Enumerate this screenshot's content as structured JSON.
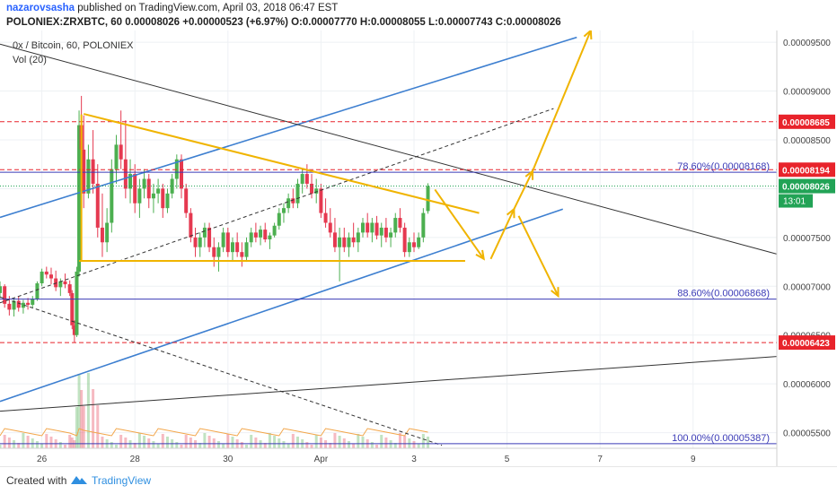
{
  "header": {
    "author": "nazarovsasha",
    "published": "published on TradingView.com, April 03, 2018 06:47 EST",
    "symbol_line": "POLONIEX:ZRXBTC, 60",
    "last": "0.00008026",
    "change": "+0.00000523 (+6.97%)",
    "open_label": "O:",
    "open": "0.00007770",
    "high_label": "H:",
    "high": "0.00008055",
    "low_label": "L:",
    "low": "0.00007743",
    "close_label": "C:",
    "close": "0.00008026"
  },
  "legend": {
    "title": "0x / Bitcoin, 60, POLONIEX",
    "volume": "Vol (20)"
  },
  "footer": {
    "created_with": "Created with",
    "brand": "TradingView"
  },
  "colors": {
    "up": "#4caf50",
    "down": "#e53950",
    "pattern": "#f0b400",
    "channel": "#3d7fd0",
    "trend": "#333333",
    "label_red": "#e8232b",
    "label_green": "#22a356",
    "fib": "#3a3ab6"
  },
  "chart_data": {
    "type": "candlestick",
    "y_axis": {
      "ylim": [
        5.34e-05,
        9.62e-05
      ],
      "ticks": [
        "0.00005500",
        "0.00006000",
        "0.00006500",
        "0.00007000",
        "0.00007500",
        "0.00008000",
        "0.00008500",
        "0.00009000",
        "0.00009500"
      ],
      "tick_values": [
        5.5e-05,
        6e-05,
        6.5e-05,
        7e-05,
        7.5e-05,
        8e-05,
        8.5e-05,
        9e-05,
        9.5e-05
      ]
    },
    "x_axis": {
      "ticks": [
        "26",
        "28",
        "30",
        "Apr",
        "3",
        "5",
        "7",
        "9"
      ],
      "tick_days": [
        26,
        28,
        30,
        32,
        34,
        36,
        38,
        40
      ],
      "xlim": [
        25.1,
        41.8
      ]
    },
    "price_labels": [
      {
        "text": "0.00008685",
        "value": 8.685e-05,
        "style": "red"
      },
      {
        "text": "0.00008194",
        "value": 8.194e-05,
        "style": "red"
      },
      {
        "text": "0.00008026",
        "value": 8.026e-05,
        "style": "green"
      },
      {
        "text": "0.00006423",
        "value": 6.423e-05,
        "style": "red"
      }
    ],
    "countdown": "13:01",
    "horizontal_lines": [
      {
        "value": 8.685e-05,
        "style": "red-dashed"
      },
      {
        "value": 8.194e-05,
        "style": "red-dashed"
      },
      {
        "value": 6.423e-05,
        "style": "red-dashed"
      },
      {
        "value": 8.026e-05,
        "style": "green-dotted"
      }
    ],
    "fib_levels": [
      {
        "label": "78.60%(0.00008168)",
        "value": 8.168e-05
      },
      {
        "label": "88.60%(0.00006868)",
        "value": 6.868e-05
      },
      {
        "label": "100.00%(0.00005387)",
        "value": 5.387e-05
      }
    ],
    "trendlines": [
      {
        "role": "channel-upper",
        "style": "blue",
        "p1": [
          25.1,
          7.705e-05
        ],
        "p2": [
          37.5,
          9.55e-05
        ]
      },
      {
        "role": "channel-lower",
        "style": "blue",
        "p1": [
          25.1,
          5.82e-05
        ],
        "p2": [
          37.2,
          7.79e-05
        ]
      },
      {
        "role": "descending",
        "style": "black",
        "p1": [
          25.1,
          9.48e-05
        ],
        "p2": [
          41.8,
          7.33e-05
        ]
      },
      {
        "role": "long-term",
        "style": "black",
        "p1": [
          25.1,
          5.72e-05
        ],
        "p2": [
          41.8,
          6.28e-05
        ]
      },
      {
        "role": "mid-channel",
        "style": "black-dashed",
        "p1": [
          25.1,
          6.83e-05
        ],
        "p2": [
          37.0,
          8.82e-05
        ]
      },
      {
        "role": "lower-dashed",
        "style": "black-dashed",
        "p1": [
          25.1,
          6.89e-05
        ],
        "p2": [
          34.6,
          5.37e-05
        ]
      }
    ],
    "pattern_lines": [
      {
        "role": "triangle-top",
        "p1": [
          26.9,
          8.765e-05
        ],
        "p2": [
          35.4,
          7.75e-05
        ]
      },
      {
        "role": "triangle-base",
        "p1": [
          26.8,
          7.26e-05
        ],
        "p2": [
          35.1,
          7.26e-05
        ]
      },
      {
        "role": "triangle-left",
        "p1": [
          26.85,
          8.76e-05
        ],
        "p2": [
          26.85,
          7.26e-05
        ]
      }
    ],
    "arrows": [
      {
        "p1": [
          34.45,
          7.99e-05
        ],
        "p2": [
          35.5,
          7.28e-05
        ]
      },
      {
        "p1": [
          35.65,
          7.28e-05
        ],
        "p2": [
          36.15,
          7.79e-05
        ]
      },
      {
        "p1": [
          36.15,
          7.79e-05
        ],
        "p2": [
          36.55,
          8.18e-05
        ]
      },
      {
        "p1": [
          36.55,
          8.18e-05
        ],
        "p2": [
          37.8,
          9.62e-05
        ]
      },
      {
        "p1": [
          36.25,
          7.72e-05
        ],
        "p2": [
          37.1,
          6.9e-05
        ]
      }
    ],
    "candles": [
      [
        25.1,
        6.93e-05,
        7.05e-05,
        6.88e-05,
        7e-05
      ],
      [
        25.2,
        7e-05,
        7.02e-05,
        6.78e-05,
        6.82e-05
      ],
      [
        25.3,
        6.82e-05,
        6.9e-05,
        6.7e-05,
        6.76e-05
      ],
      [
        25.4,
        6.76e-05,
        6.88e-05,
        6.69e-05,
        6.85e-05
      ],
      [
        25.5,
        6.85e-05,
        6.9e-05,
        6.74e-05,
        6.78e-05
      ],
      [
        25.6,
        6.78e-05,
        6.86e-05,
        6.72e-05,
        6.83e-05
      ],
      [
        25.7,
        6.83e-05,
        6.88e-05,
        6.76e-05,
        6.81e-05
      ],
      [
        25.8,
        6.81e-05,
        6.9e-05,
        6.78e-05,
        6.87e-05
      ],
      [
        25.9,
        6.87e-05,
        7.05e-05,
        6.85e-05,
        7.03e-05
      ],
      [
        26.0,
        7.03e-05,
        7.18e-05,
        7e-05,
        7.15e-05
      ],
      [
        26.1,
        7.15e-05,
        7.2e-05,
        7.08e-05,
        7.12e-05
      ],
      [
        26.2,
        7.12e-05,
        7.19e-05,
        7.02e-05,
        7.08e-05
      ],
      [
        26.3,
        7.08e-05,
        7.16e-05,
        6.95e-05,
        6.99e-05
      ],
      [
        26.4,
        6.99e-05,
        7.08e-05,
        6.9e-05,
        7.05e-05
      ],
      [
        26.5,
        7.05e-05,
        7.13e-05,
        6.98e-05,
        7.02e-05
      ],
      [
        26.6,
        7.02e-05,
        7.06e-05,
        6.9e-05,
        6.93e-05
      ],
      [
        26.65,
        6.93e-05,
        6.96e-05,
        6.56e-05,
        6.6e-05
      ],
      [
        26.7,
        6.6e-05,
        6.65e-05,
        6.42e-05,
        6.5e-05
      ],
      [
        26.75,
        6.5e-05,
        7.2e-05,
        6.48e-05,
        7.15e-05
      ],
      [
        26.8,
        7.15e-05,
        8.8e-05,
        7.1e-05,
        8.65e-05
      ],
      [
        26.85,
        8.65e-05,
        8.95e-05,
        8.2e-05,
        8.4e-05
      ],
      [
        26.9,
        8.4e-05,
        8.75e-05,
        7.8e-05,
        7.95e-05
      ],
      [
        27.0,
        7.95e-05,
        8.45e-05,
        7.9e-05,
        8.3e-05
      ],
      [
        27.1,
        8.3e-05,
        8.6e-05,
        7.95e-05,
        8.05e-05
      ],
      [
        27.2,
        8.05e-05,
        8.25e-05,
        7.5e-05,
        7.6e-05
      ],
      [
        27.3,
        7.6e-05,
        7.95e-05,
        7.3e-05,
        7.45e-05
      ],
      [
        27.4,
        7.45e-05,
        7.8e-05,
        7.35e-05,
        7.65e-05
      ],
      [
        27.5,
        7.65e-05,
        8.3e-05,
        7.55e-05,
        8.2e-05
      ],
      [
        27.6,
        8.2e-05,
        8.55e-05,
        8.05e-05,
        8.45e-05
      ],
      [
        27.7,
        8.45e-05,
        8.8e-05,
        8.2e-05,
        8.3e-05
      ],
      [
        27.8,
        8.3e-05,
        8.7e-05,
        7.9e-05,
        8e-05
      ],
      [
        27.9,
        8e-05,
        8.3e-05,
        7.85e-05,
        8.15e-05
      ],
      [
        28.0,
        8.15e-05,
        8.25e-05,
        7.75e-05,
        7.85e-05
      ],
      [
        28.1,
        7.85e-05,
        8.1e-05,
        7.7e-05,
        8e-05
      ],
      [
        28.2,
        8e-05,
        8.2e-05,
        7.9e-05,
        8.1e-05
      ],
      [
        28.3,
        8.1e-05,
        8.15e-05,
        7.8e-05,
        7.9e-05
      ],
      [
        28.4,
        7.9e-05,
        8.05e-05,
        7.75e-05,
        7.95e-05
      ],
      [
        28.5,
        7.95e-05,
        8.1e-05,
        7.85e-05,
        8e-05
      ],
      [
        28.6,
        8e-05,
        8.05e-05,
        7.7e-05,
        7.8e-05
      ],
      [
        28.7,
        7.8e-05,
        8e-05,
        7.75e-05,
        7.95e-05
      ],
      [
        28.8,
        7.95e-05,
        8.15e-05,
        7.9e-05,
        8.1e-05
      ],
      [
        28.9,
        8.1e-05,
        8.35e-05,
        8e-05,
        8.3e-05
      ],
      [
        29.0,
        8.3e-05,
        8.35e-05,
        7.9e-05,
        8e-05
      ],
      [
        29.1,
        8e-05,
        8.05e-05,
        7.7e-05,
        7.75e-05
      ],
      [
        29.2,
        7.75e-05,
        7.8e-05,
        7.45e-05,
        7.5e-05
      ],
      [
        29.3,
        7.5e-05,
        7.6e-05,
        7.3e-05,
        7.4e-05
      ],
      [
        29.4,
        7.4e-05,
        7.55e-05,
        7.3e-05,
        7.5e-05
      ],
      [
        29.5,
        7.5e-05,
        7.65e-05,
        7.4e-05,
        7.6e-05
      ],
      [
        29.6,
        7.6e-05,
        7.65e-05,
        7.35e-05,
        7.4e-05
      ],
      [
        29.7,
        7.4e-05,
        7.5e-05,
        7.2e-05,
        7.3e-05
      ],
      [
        29.8,
        7.3e-05,
        7.45e-05,
        7.15e-05,
        7.4e-05
      ],
      [
        29.9,
        7.4e-05,
        7.6e-05,
        7.35e-05,
        7.55e-05
      ],
      [
        30.0,
        7.55e-05,
        7.6e-05,
        7.3e-05,
        7.35e-05
      ],
      [
        30.1,
        7.35e-05,
        7.5e-05,
        7.25e-05,
        7.45e-05
      ],
      [
        30.2,
        7.45e-05,
        7.55e-05,
        7.3e-05,
        7.35e-05
      ],
      [
        30.3,
        7.35e-05,
        7.45e-05,
        7.2e-05,
        7.3e-05
      ],
      [
        30.4,
        7.3e-05,
        7.5e-05,
        7.25e-05,
        7.45e-05
      ],
      [
        30.5,
        7.45e-05,
        7.6e-05,
        7.4e-05,
        7.55e-05
      ],
      [
        30.6,
        7.55e-05,
        7.65e-05,
        7.45e-05,
        7.5e-05
      ],
      [
        30.7,
        7.5e-05,
        7.62e-05,
        7.42e-05,
        7.58e-05
      ],
      [
        30.8,
        7.58e-05,
        7.65e-05,
        7.45e-05,
        7.48e-05
      ],
      [
        30.9,
        7.48e-05,
        7.55e-05,
        7.38e-05,
        7.52e-05
      ],
      [
        31.0,
        7.52e-05,
        7.65e-05,
        7.5e-05,
        7.62e-05
      ],
      [
        31.1,
        7.62e-05,
        7.8e-05,
        7.58e-05,
        7.75e-05
      ],
      [
        31.2,
        7.75e-05,
        7.85e-05,
        7.65e-05,
        7.8e-05
      ],
      [
        31.3,
        7.8e-05,
        7.95e-05,
        7.75e-05,
        7.9e-05
      ],
      [
        31.4,
        7.9e-05,
        8e-05,
        7.8e-05,
        7.85e-05
      ],
      [
        31.5,
        7.85e-05,
        8.1e-05,
        7.8e-05,
        8.05e-05
      ],
      [
        31.6,
        8.05e-05,
        8.2e-05,
        7.95e-05,
        8.15e-05
      ],
      [
        31.7,
        8.15e-05,
        8.25e-05,
        8e-05,
        8.05e-05
      ],
      [
        31.8,
        8.05e-05,
        8.15e-05,
        7.9e-05,
        7.95e-05
      ],
      [
        31.9,
        7.95e-05,
        8.1e-05,
        7.85e-05,
        8e-05
      ],
      [
        32.0,
        8e-05,
        8.05e-05,
        7.7e-05,
        7.75e-05
      ],
      [
        32.1,
        7.75e-05,
        7.9e-05,
        7.6e-05,
        7.65e-05
      ],
      [
        32.2,
        7.65e-05,
        7.8e-05,
        7.5e-05,
        7.55e-05
      ],
      [
        32.3,
        7.55e-05,
        7.7e-05,
        7.35e-05,
        7.4e-05
      ],
      [
        32.4,
        7.4e-05,
        7.6e-05,
        7.05e-05,
        7.5e-05
      ],
      [
        32.5,
        7.5e-05,
        7.6e-05,
        7.35e-05,
        7.4e-05
      ],
      [
        32.6,
        7.4e-05,
        7.55e-05,
        7.3e-05,
        7.5e-05
      ],
      [
        32.7,
        7.5e-05,
        7.65e-05,
        7.4e-05,
        7.45e-05
      ],
      [
        32.8,
        7.45e-05,
        7.6e-05,
        7.35e-05,
        7.55e-05
      ],
      [
        32.9,
        7.55e-05,
        7.7e-05,
        7.5e-05,
        7.65e-05
      ],
      [
        33.0,
        7.65e-05,
        7.75e-05,
        7.5e-05,
        7.55e-05
      ],
      [
        33.1,
        7.55e-05,
        7.7e-05,
        7.45e-05,
        7.65e-05
      ],
      [
        33.2,
        7.65e-05,
        7.72e-05,
        7.48e-05,
        7.52e-05
      ],
      [
        33.3,
        7.52e-05,
        7.65e-05,
        7.4e-05,
        7.6e-05
      ],
      [
        33.4,
        7.6e-05,
        7.7e-05,
        7.45e-05,
        7.5e-05
      ],
      [
        33.5,
        7.5e-05,
        7.6e-05,
        7.4e-05,
        7.55e-05
      ],
      [
        33.6,
        7.55e-05,
        7.75e-05,
        7.5e-05,
        7.7e-05
      ],
      [
        33.7,
        7.7e-05,
        7.8e-05,
        7.55e-05,
        7.6e-05
      ],
      [
        33.8,
        7.6e-05,
        7.65e-05,
        7.3e-05,
        7.35e-05
      ],
      [
        33.9,
        7.35e-05,
        7.5e-05,
        7.3e-05,
        7.45e-05
      ],
      [
        34.0,
        7.45e-05,
        7.55e-05,
        7.35e-05,
        7.4e-05
      ],
      [
        34.1,
        7.4e-05,
        7.55e-05,
        7.38e-05,
        7.5e-05
      ],
      [
        34.2,
        7.5e-05,
        7.8e-05,
        7.45e-05,
        7.75e-05
      ],
      [
        34.3,
        7.77e-05,
        8.055e-05,
        7.743e-05,
        8.026e-05
      ]
    ]
  }
}
